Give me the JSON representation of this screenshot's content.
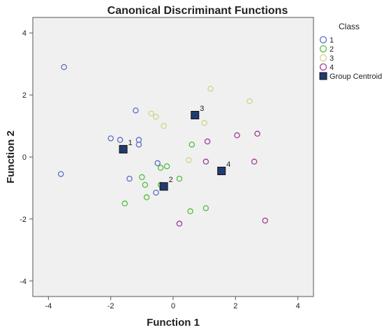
{
  "chart_data": {
    "type": "scatter",
    "title": "Canonical Discriminant Functions",
    "xlabel": "Function 1",
    "ylabel": "Function 2",
    "xlim": [
      -4.5,
      4.5
    ],
    "ylim": [
      -4.5,
      4.5
    ],
    "x_ticks": [
      "-4",
      "-2",
      "0",
      "2",
      "4"
    ],
    "y_ticks": [
      "4",
      "2",
      "0",
      "-2",
      "-4"
    ],
    "grid": false,
    "legend": {
      "title": "Class",
      "placement": "right",
      "entries": [
        "1",
        "2",
        "3",
        "4",
        "Group Centroid"
      ]
    },
    "colors": {
      "plot_background": "#f0f0f0",
      "class_1": "#5b6fc4",
      "class_2": "#4fbf3f",
      "class_3": "#d3d48a",
      "class_4": "#a23a95",
      "centroid_fill": "#1f3c6e"
    },
    "series": [
      {
        "name": "1",
        "x": [
          -3.5,
          -3.6,
          -1.2,
          -2.0,
          -1.7,
          -1.1,
          -1.1,
          -0.5,
          -1.4,
          -0.55
        ],
        "y": [
          2.9,
          -0.55,
          1.5,
          0.6,
          0.55,
          0.55,
          0.4,
          -0.2,
          -0.7,
          -1.15
        ]
      },
      {
        "name": "2",
        "x": [
          -0.4,
          -0.2,
          -0.4,
          -1.0,
          -0.9,
          -0.85,
          -1.55,
          0.2,
          0.6,
          0.55,
          1.05
        ],
        "y": [
          -0.35,
          -0.3,
          -0.9,
          -0.65,
          -0.9,
          -1.3,
          -1.5,
          -0.7,
          0.4,
          -1.75,
          -1.65
        ]
      },
      {
        "name": "3",
        "x": [
          -0.7,
          -0.55,
          -0.3,
          1.2,
          1.0,
          0.5,
          2.45
        ],
        "y": [
          1.4,
          1.3,
          1.0,
          2.2,
          1.1,
          -0.1,
          1.8
        ]
      },
      {
        "name": "4",
        "x": [
          1.1,
          1.05,
          2.05,
          2.7,
          2.6,
          2.95,
          0.2
        ],
        "y": [
          0.5,
          -0.15,
          0.7,
          0.75,
          -0.15,
          -2.05,
          -2.15
        ]
      }
    ],
    "centroids": [
      {
        "label": "1",
        "x": -1.6,
        "y": 0.25
      },
      {
        "label": "2",
        "x": -0.3,
        "y": -0.95
      },
      {
        "label": "3",
        "x": 0.7,
        "y": 1.35
      },
      {
        "label": "4",
        "x": 1.55,
        "y": -0.45
      }
    ]
  }
}
